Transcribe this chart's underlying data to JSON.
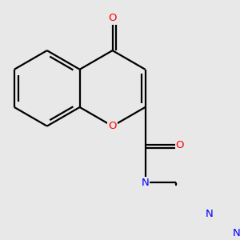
{
  "background_color": "#e8e8e8",
  "bond_color": "#000000",
  "bond_width": 1.6,
  "atom_colors": {
    "O": "#ff0000",
    "N": "#0000ff",
    "C": "#000000"
  },
  "font_size": 9.5,
  "fig_size": [
    3.0,
    3.0
  ],
  "dpi": 100
}
